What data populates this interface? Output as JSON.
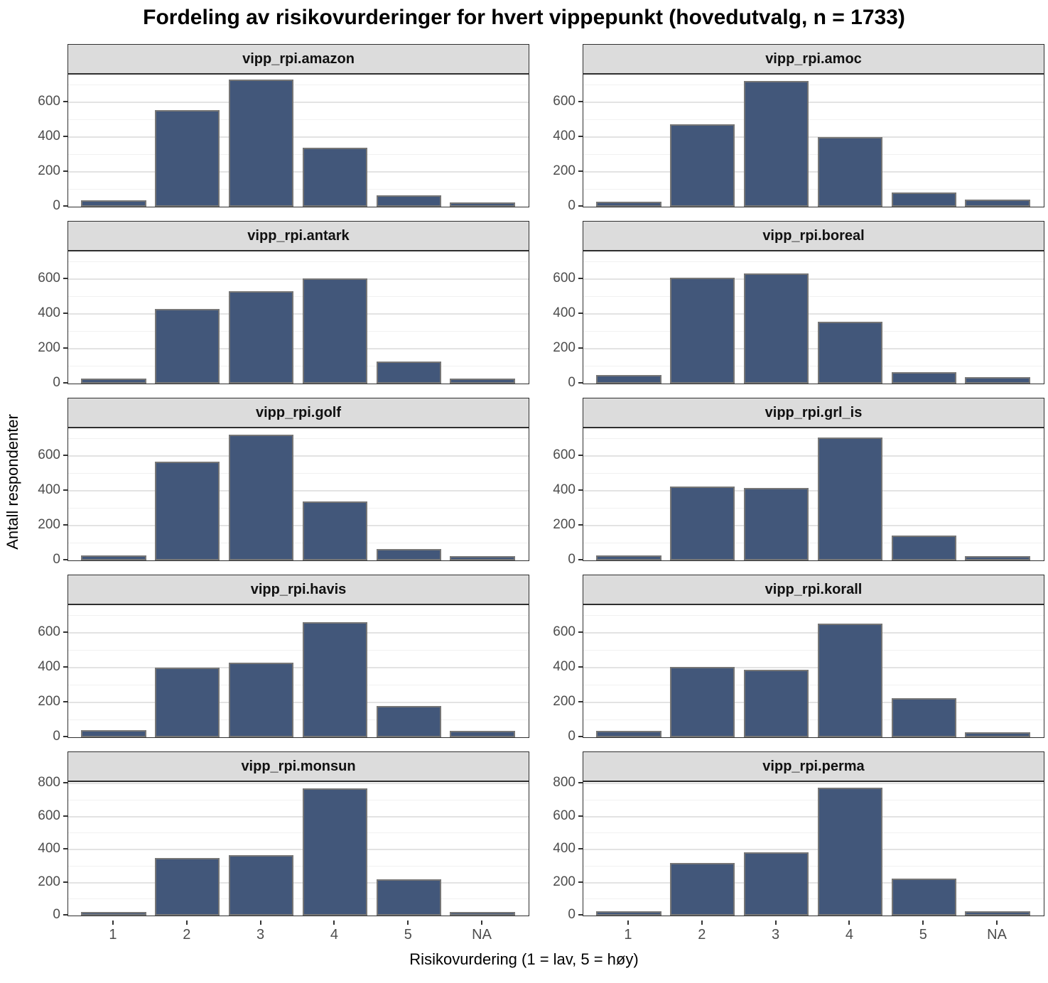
{
  "chart_data": {
    "type": "bar",
    "title": "Fordeling av risikovurderinger for hvert vippepunkt (hovedutvalg, n = 1733)",
    "xlabel": "Risikovurdering (1 = lav, 5 = høy)",
    "ylabel": "Antall respondenter",
    "categories": [
      "1",
      "2",
      "3",
      "4",
      "5",
      "NA"
    ],
    "legend": "none",
    "grid": "horizontal major and minor lines on white panel",
    "layout": "facet grid 5 rows x 2 columns, shared x axis labels at bottom",
    "colors": {
      "bar_fill": "#42577A",
      "bar_border": "#767676",
      "strip_background": "#DCDCDC",
      "panel_border": "#2F2F2F",
      "gridline_major": "#E3E3E3",
      "gridline_minor": "#F1F1F1",
      "tick_text": "#4D4D4D"
    },
    "facets": [
      {
        "label": "vipp_rpi.amazon",
        "values": [
          35,
          555,
          730,
          340,
          65,
          25
        ],
        "ylim": [
          0,
          760
        ],
        "yticks": [
          0,
          200,
          400,
          600
        ]
      },
      {
        "label": "vipp_rpi.amoc",
        "values": [
          30,
          475,
          725,
          400,
          80,
          40
        ],
        "ylim": [
          0,
          760
        ],
        "yticks": [
          0,
          200,
          400,
          600
        ]
      },
      {
        "label": "vipp_rpi.antark",
        "values": [
          30,
          430,
          530,
          605,
          125,
          30
        ],
        "ylim": [
          0,
          760
        ],
        "yticks": [
          0,
          200,
          400,
          600
        ]
      },
      {
        "label": "vipp_rpi.boreal",
        "values": [
          50,
          610,
          635,
          355,
          65,
          35
        ],
        "ylim": [
          0,
          760
        ],
        "yticks": [
          0,
          200,
          400,
          600
        ]
      },
      {
        "label": "vipp_rpi.golf",
        "values": [
          30,
          570,
          725,
          340,
          65,
          25
        ],
        "ylim": [
          0,
          760
        ],
        "yticks": [
          0,
          200,
          400,
          600
        ]
      },
      {
        "label": "vipp_rpi.grl_is",
        "values": [
          30,
          425,
          415,
          705,
          145,
          25
        ],
        "ylim": [
          0,
          760
        ],
        "yticks": [
          0,
          200,
          400,
          600
        ]
      },
      {
        "label": "vipp_rpi.havis",
        "values": [
          40,
          400,
          430,
          660,
          180,
          35
        ],
        "ylim": [
          0,
          760
        ],
        "yticks": [
          0,
          200,
          400,
          600
        ]
      },
      {
        "label": "vipp_rpi.korall",
        "values": [
          35,
          405,
          390,
          655,
          225,
          30
        ],
        "ylim": [
          0,
          760
        ],
        "yticks": [
          0,
          200,
          400,
          600
        ]
      },
      {
        "label": "vipp_rpi.monsun",
        "values": [
          20,
          350,
          365,
          770,
          220,
          20
        ],
        "ylim": [
          0,
          810
        ],
        "yticks": [
          0,
          200,
          400,
          600,
          800
        ]
      },
      {
        "label": "vipp_rpi.perma",
        "values": [
          25,
          320,
          385,
          775,
          225,
          25
        ],
        "ylim": [
          0,
          810
        ],
        "yticks": [
          0,
          200,
          400,
          600,
          800
        ]
      }
    ]
  }
}
